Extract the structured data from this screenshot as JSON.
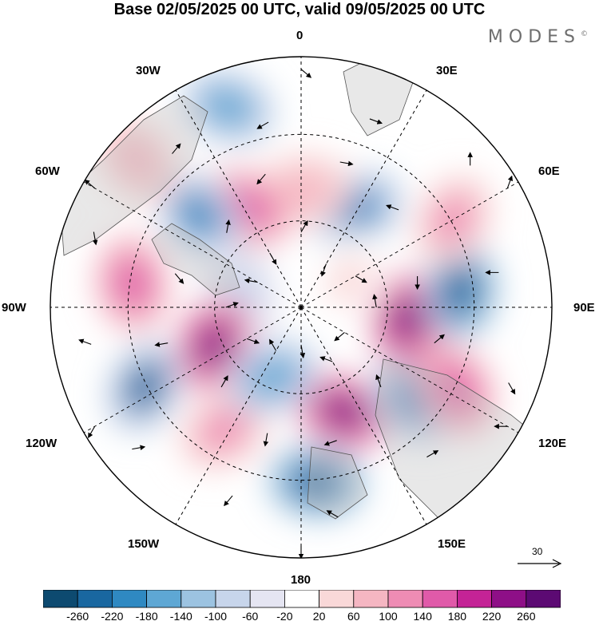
{
  "title": "Base 02/05/2025 00 UTC, valid 09/05/2025 00 UTC",
  "brand": "MODES",
  "brand_mark": "©",
  "longitude_labels": {
    "n0": "0",
    "e30": "30E",
    "e60": "60E",
    "e90": "90E",
    "e120": "120E",
    "e150": "150E",
    "s180": "180",
    "w150": "150W",
    "w120": "120W",
    "w90": "90W",
    "w60": "60W",
    "w30": "30W"
  },
  "reference_vector": {
    "value": "30"
  },
  "colorbar": {
    "colors": [
      "#0d4a70",
      "#1967a0",
      "#2f89c2",
      "#5ea7d4",
      "#9cc3e1",
      "#c7d5eb",
      "#e5e5f2",
      "#ffffff",
      "#f9d8d8",
      "#f5b6c2",
      "#ee8cb4",
      "#e05aa9",
      "#c42396",
      "#8e0f87",
      "#5c0a73"
    ],
    "labels": [
      "-260",
      "-220",
      "-180",
      "-140",
      "-100",
      "-60",
      "-20",
      "20",
      "60",
      "100",
      "140",
      "180",
      "220",
      "260"
    ]
  },
  "anomaly_fields": [
    {
      "lon": 5,
      "colat": 0.7,
      "value": -240
    },
    {
      "lon": 22,
      "colat": 0.45,
      "value": 250
    },
    {
      "lon": 50,
      "colat": 0.58,
      "value": -210
    },
    {
      "lon": 62,
      "colat": 0.7,
      "value": 170
    },
    {
      "lon": 83,
      "colat": 0.42,
      "value": 230
    },
    {
      "lon": 96,
      "colat": 0.64,
      "value": -230
    },
    {
      "lon": 120,
      "colat": 0.7,
      "value": 110
    },
    {
      "lon": 150,
      "colat": 0.45,
      "value": -200
    },
    {
      "lon": 178,
      "colat": 0.47,
      "value": 80
    },
    {
      "lon": 208,
      "colat": 0.45,
      "value": 150
    },
    {
      "lon": 228,
      "colat": 0.55,
      "value": -210
    },
    {
      "lon": 200,
      "colat": 0.85,
      "value": -160
    },
    {
      "lon": 228,
      "colat": 0.88,
      "value": 80
    },
    {
      "lon": 262,
      "colat": 0.68,
      "value": 160
    },
    {
      "lon": 255,
      "colat": 0.25,
      "value": -60
    },
    {
      "lon": 293,
      "colat": 0.38,
      "value": 230
    },
    {
      "lon": 297,
      "colat": 0.7,
      "value": -220
    },
    {
      "lon": 328,
      "colat": 0.58,
      "value": 120
    },
    {
      "lon": 338,
      "colat": 0.3,
      "value": -170
    },
    {
      "lon": 120,
      "colat": 0.22,
      "value": 40
    }
  ],
  "wind_vectors": [
    {
      "lon": 0,
      "colat": 0.15,
      "dir": 80
    },
    {
      "lon": 30,
      "colat": 0.25,
      "dir": 200
    },
    {
      "lon": 60,
      "colat": 0.2,
      "dir": 140
    },
    {
      "lon": 90,
      "colat": 0.3,
      "dir": 260
    },
    {
      "lon": 120,
      "colat": 0.25,
      "dir": 30
    },
    {
      "lon": 150,
      "colat": 0.2,
      "dir": 110
    },
    {
      "lon": 180,
      "colat": 0.3,
      "dir": 300
    },
    {
      "lon": 210,
      "colat": 0.25,
      "dir": 60
    },
    {
      "lon": 240,
      "colat": 0.2,
      "dir": 190
    },
    {
      "lon": 270,
      "colat": 0.3,
      "dir": 340
    },
    {
      "lon": 300,
      "colat": 0.25,
      "dir": 20
    },
    {
      "lon": 330,
      "colat": 0.2,
      "dir": 240
    },
    {
      "lon": 15,
      "colat": 0.55,
      "dir": 160
    },
    {
      "lon": 45,
      "colat": 0.45,
      "dir": 250
    },
    {
      "lon": 75,
      "colat": 0.55,
      "dir": 320
    },
    {
      "lon": 105,
      "colat": 0.48,
      "dir": 90
    },
    {
      "lon": 135,
      "colat": 0.55,
      "dir": 200
    },
    {
      "lon": 165,
      "colat": 0.6,
      "dir": 10
    },
    {
      "lon": 195,
      "colat": 0.55,
      "dir": 130
    },
    {
      "lon": 225,
      "colat": 0.42,
      "dir": 280
    },
    {
      "lon": 255,
      "colat": 0.52,
      "dir": 50
    },
    {
      "lon": 285,
      "colat": 0.55,
      "dir": 170
    },
    {
      "lon": 315,
      "colat": 0.45,
      "dir": 300
    },
    {
      "lon": 345,
      "colat": 0.52,
      "dir": 100
    },
    {
      "lon": 10,
      "colat": 0.85,
      "dir": 210
    },
    {
      "lon": 40,
      "colat": 0.78,
      "dir": 330
    },
    {
      "lon": 70,
      "colat": 0.88,
      "dir": 60
    },
    {
      "lon": 100,
      "colat": 0.8,
      "dir": 180
    },
    {
      "lon": 130,
      "colat": 0.88,
      "dir": 270
    },
    {
      "lon": 160,
      "colat": 0.8,
      "dir": 20
    },
    {
      "lon": 190,
      "colat": 0.75,
      "dir": 150
    },
    {
      "lon": 220,
      "colat": 0.8,
      "dir": 310
    },
    {
      "lon": 250,
      "colat": 0.88,
      "dir": 80
    },
    {
      "lon": 280,
      "colat": 0.85,
      "dir": 200
    },
    {
      "lon": 310,
      "colat": 0.88,
      "dir": 350
    },
    {
      "lon": 340,
      "colat": 0.8,
      "dir": 130
    },
    {
      "lon": 0,
      "colat": 0.95,
      "dir": 90
    },
    {
      "lon": 60,
      "colat": 0.95,
      "dir": 180
    },
    {
      "lon": 120,
      "colat": 0.95,
      "dir": 290
    },
    {
      "lon": 180,
      "colat": 0.95,
      "dir": 40
    },
    {
      "lon": 240,
      "colat": 0.95,
      "dir": 220
    },
    {
      "lon": 300,
      "colat": 0.95,
      "dir": 120
    }
  ]
}
